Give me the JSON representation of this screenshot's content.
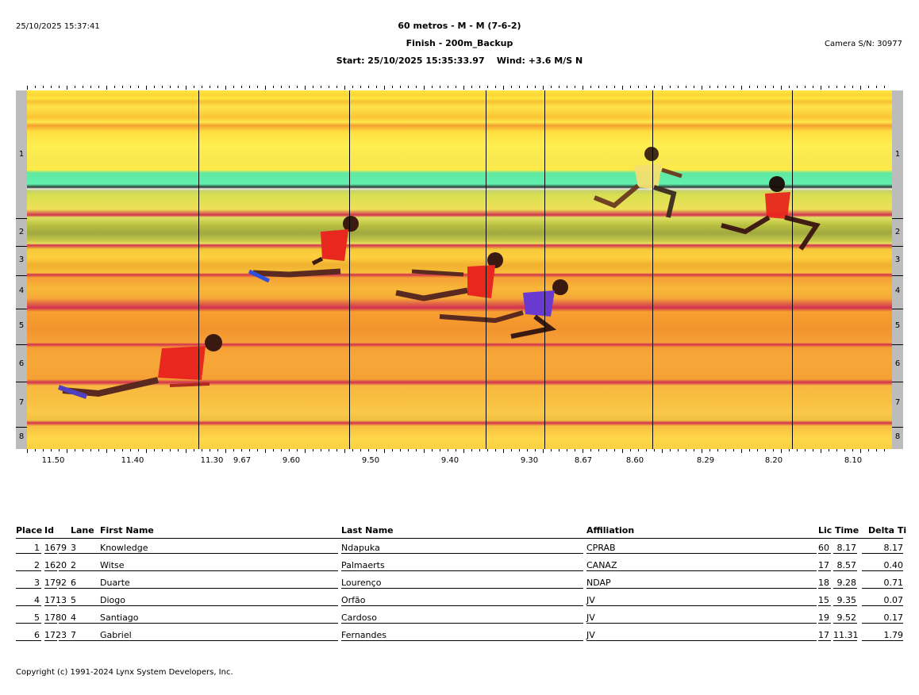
{
  "header": {
    "timestamp": "25/10/2025 15:37:41",
    "event_title": "60 metros - M - M (7-6-2)",
    "finish_line": "Finish - 200m_Backup",
    "start_wind": "Start: 25/10/2025 15:35:33.97    Wind: +3.6 M/S N",
    "camera": "Camera S/N: 30977"
  },
  "photo": {
    "lane_labels": [
      "1",
      "2",
      "3",
      "4",
      "5",
      "6",
      "7",
      "8"
    ],
    "time_axis_labels": [
      "11.50",
      "11.40",
      "11.30",
      "9.67",
      "9.60",
      "9.50",
      "9.40",
      "9.30",
      "8.67",
      "8.60",
      "8.29",
      "8.20",
      "8.10"
    ]
  },
  "results": {
    "columns": {
      "place": "Place",
      "id": "Id",
      "lane": "Lane",
      "first_name": "First Name",
      "last_name": "Last Name",
      "affiliation": "Affiliation",
      "lic": "Lic",
      "time": "Time",
      "delta": "Delta Ti"
    },
    "rows": [
      {
        "place": "1",
        "id": "1679",
        "lane": "3",
        "first_name": "Knowledge",
        "last_name": "Ndapuka",
        "affiliation": "CPRAB",
        "lic": "60",
        "time": "8.17",
        "delta": "8.17"
      },
      {
        "place": "2",
        "id": "1620",
        "lane": "2",
        "first_name": "Witse",
        "last_name": "Palmaerts",
        "affiliation": "CANAZ",
        "lic": "17",
        "time": "8.57",
        "delta": "0.40"
      },
      {
        "place": "3",
        "id": "1792",
        "lane": "6",
        "first_name": "Duarte",
        "last_name": "Lourenço",
        "affiliation": "NDAP",
        "lic": "18",
        "time": "9.28",
        "delta": "0.71"
      },
      {
        "place": "4",
        "id": "1713",
        "lane": "5",
        "first_name": "Diogo",
        "last_name": "Orfão",
        "affiliation": "JV",
        "lic": "15",
        "time": "9.35",
        "delta": "0.07"
      },
      {
        "place": "5",
        "id": "1780",
        "lane": "4",
        "first_name": "Santiago",
        "last_name": "Cardoso",
        "affiliation": "JV",
        "lic": "19",
        "time": "9.52",
        "delta": "0.17"
      },
      {
        "place": "6",
        "id": "1723",
        "lane": "7",
        "first_name": "Gabriel",
        "last_name": "Fernandes",
        "affiliation": "JV",
        "lic": "17",
        "time": "11.31",
        "delta": "1.79"
      }
    ]
  },
  "footer": {
    "copyright": "Copyright (c) 1991-2024 Lynx System Developers, Inc."
  },
  "colors": {
    "lane_line": "#d23050",
    "runner_red": "#e8281e",
    "runner_yellow": "#f0e060",
    "runner_purple": "#6a3ad0"
  }
}
